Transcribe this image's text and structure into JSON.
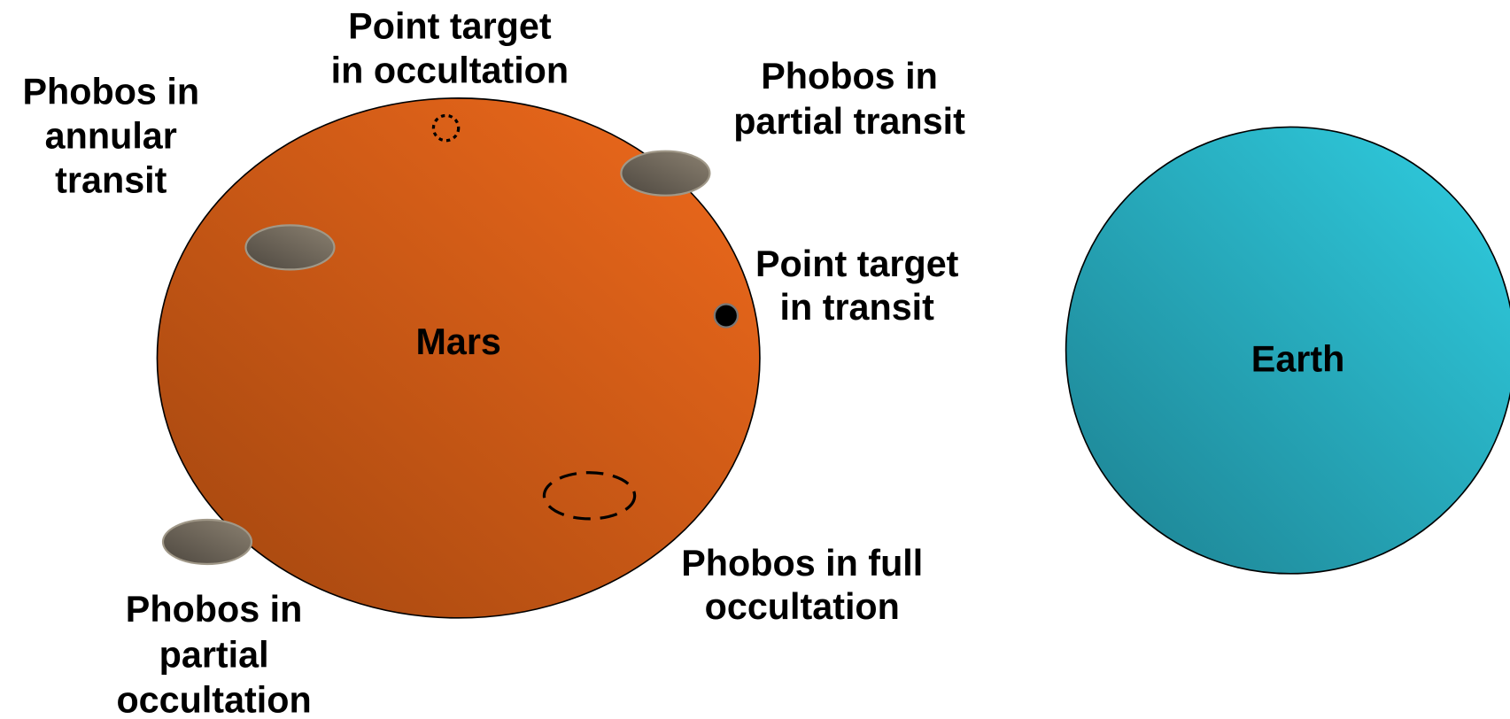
{
  "labels": [
    {
      "lines": [
        "Phobos in",
        "annular",
        "transit"
      ]
    },
    {
      "lines": [
        "Point target",
        "in occultation"
      ]
    },
    {
      "lines": [
        "Phobos in",
        "partial transit"
      ]
    },
    {
      "lines": [
        "Point target",
        "in transit"
      ]
    },
    {
      "lines": [
        "Mars"
      ]
    },
    {
      "lines": [
        "Earth"
      ]
    },
    {
      "lines": [
        "Phobos in full",
        "occultation"
      ]
    },
    {
      "lines": [
        "Phobos in",
        "partial",
        "occultation"
      ]
    }
  ]
}
